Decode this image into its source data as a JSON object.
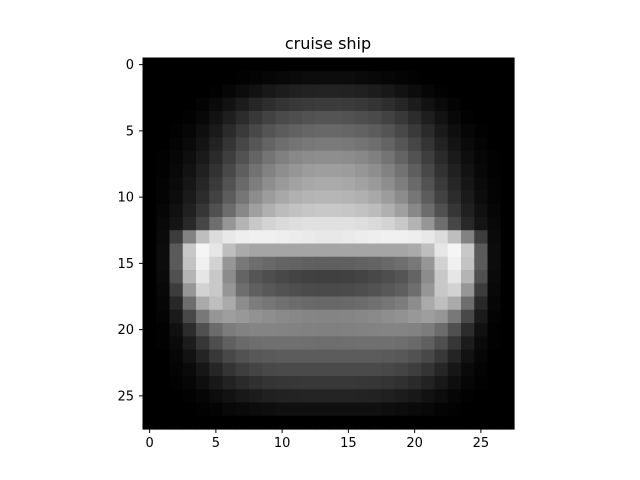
{
  "chart_data": {
    "type": "heatmap",
    "title": "cruise ship",
    "xlabel": "",
    "ylabel": "",
    "colormap": "gray",
    "rows": 28,
    "cols": 28,
    "xlim": [
      -0.5,
      27.5
    ],
    "ylim": [
      27.5,
      -0.5
    ],
    "x_ticks": [
      0,
      5,
      10,
      15,
      20,
      25
    ],
    "y_ticks": [
      0,
      5,
      10,
      15,
      20,
      25
    ],
    "grid": false,
    "value_range": [
      0,
      255
    ],
    "values": [
      [
        0,
        0,
        0,
        0,
        0,
        0,
        0,
        0,
        0,
        0,
        0,
        0,
        0,
        0,
        0,
        0,
        0,
        0,
        0,
        0,
        0,
        0,
        0,
        0,
        0,
        0,
        0,
        0
      ],
      [
        0,
        0,
        0,
        0,
        0,
        0,
        0,
        2,
        4,
        6,
        8,
        10,
        12,
        12,
        12,
        12,
        10,
        8,
        6,
        4,
        2,
        0,
        0,
        0,
        0,
        0,
        0,
        0
      ],
      [
        0,
        0,
        0,
        0,
        0,
        2,
        6,
        12,
        18,
        24,
        28,
        32,
        34,
        35,
        35,
        34,
        32,
        28,
        24,
        18,
        12,
        6,
        2,
        0,
        0,
        0,
        0,
        0
      ],
      [
        0,
        0,
        0,
        0,
        4,
        10,
        18,
        28,
        38,
        46,
        52,
        56,
        58,
        60,
        60,
        58,
        56,
        52,
        46,
        38,
        28,
        18,
        10,
        4,
        0,
        0,
        0,
        0
      ],
      [
        0,
        0,
        0,
        2,
        8,
        18,
        30,
        44,
        56,
        66,
        74,
        78,
        82,
        84,
        84,
        82,
        78,
        74,
        66,
        56,
        44,
        30,
        18,
        8,
        2,
        0,
        0,
        0
      ],
      [
        0,
        0,
        2,
        6,
        14,
        26,
        42,
        58,
        72,
        84,
        92,
        98,
        102,
        104,
        104,
        102,
        98,
        92,
        84,
        72,
        58,
        42,
        26,
        14,
        6,
        2,
        0,
        0
      ],
      [
        0,
        0,
        4,
        10,
        20,
        34,
        52,
        70,
        86,
        100,
        110,
        116,
        120,
        122,
        122,
        120,
        116,
        110,
        100,
        86,
        70,
        52,
        34,
        20,
        10,
        4,
        0,
        0
      ],
      [
        0,
        2,
        6,
        14,
        26,
        42,
        62,
        82,
        100,
        116,
        128,
        136,
        140,
        142,
        142,
        140,
        136,
        128,
        116,
        100,
        82,
        62,
        42,
        26,
        14,
        6,
        2,
        0
      ],
      [
        0,
        2,
        8,
        18,
        32,
        50,
        72,
        94,
        114,
        130,
        142,
        150,
        156,
        158,
        158,
        156,
        150,
        142,
        130,
        114,
        94,
        72,
        50,
        32,
        18,
        8,
        2,
        0
      ],
      [
        0,
        4,
        10,
        22,
        38,
        58,
        82,
        106,
        126,
        142,
        154,
        162,
        168,
        170,
        170,
        168,
        162,
        154,
        142,
        126,
        106,
        82,
        58,
        38,
        22,
        10,
        4,
        0
      ],
      [
        0,
        4,
        12,
        26,
        44,
        66,
        92,
        118,
        140,
        156,
        168,
        176,
        180,
        182,
        182,
        180,
        176,
        168,
        156,
        140,
        118,
        92,
        66,
        44,
        26,
        12,
        4,
        0
      ],
      [
        0,
        6,
        16,
        32,
        54,
        80,
        108,
        136,
        160,
        176,
        188,
        194,
        198,
        200,
        200,
        198,
        194,
        188,
        176,
        160,
        136,
        108,
        80,
        54,
        32,
        16,
        6,
        0
      ],
      [
        0,
        8,
        20,
        40,
        70,
        110,
        150,
        180,
        200,
        212,
        218,
        222,
        224,
        224,
        224,
        224,
        222,
        218,
        212,
        200,
        180,
        150,
        110,
        70,
        40,
        20,
        8,
        0
      ],
      [
        0,
        10,
        60,
        130,
        190,
        220,
        232,
        238,
        240,
        240,
        238,
        236,
        234,
        232,
        232,
        234,
        236,
        238,
        240,
        240,
        238,
        232,
        220,
        190,
        130,
        60,
        10,
        0
      ],
      [
        0,
        12,
        90,
        200,
        245,
        230,
        190,
        170,
        165,
        165,
        165,
        165,
        165,
        165,
        165,
        165,
        165,
        165,
        165,
        165,
        170,
        190,
        230,
        245,
        200,
        90,
        12,
        0
      ],
      [
        0,
        12,
        90,
        195,
        240,
        210,
        150,
        120,
        110,
        105,
        100,
        98,
        96,
        95,
        95,
        96,
        98,
        100,
        105,
        110,
        120,
        150,
        210,
        240,
        195,
        90,
        12,
        0
      ],
      [
        0,
        10,
        80,
        180,
        230,
        200,
        140,
        100,
        85,
        78,
        72,
        68,
        65,
        64,
        64,
        65,
        68,
        72,
        78,
        85,
        100,
        140,
        200,
        230,
        180,
        80,
        10,
        0
      ],
      [
        0,
        8,
        60,
        150,
        210,
        200,
        150,
        110,
        95,
        88,
        82,
        78,
        75,
        74,
        74,
        75,
        78,
        82,
        88,
        95,
        110,
        150,
        200,
        210,
        150,
        60,
        8,
        0
      ],
      [
        0,
        6,
        40,
        110,
        170,
        190,
        170,
        140,
        125,
        118,
        112,
        108,
        105,
        104,
        104,
        105,
        108,
        112,
        118,
        125,
        140,
        170,
        190,
        170,
        110,
        40,
        6,
        0
      ],
      [
        0,
        4,
        26,
        72,
        120,
        150,
        158,
        152,
        146,
        142,
        138,
        135,
        133,
        132,
        132,
        133,
        135,
        138,
        142,
        146,
        152,
        158,
        150,
        120,
        72,
        26,
        4,
        0
      ],
      [
        0,
        2,
        16,
        44,
        80,
        108,
        124,
        130,
        132,
        132,
        131,
        130,
        129,
        128,
        128,
        129,
        130,
        131,
        132,
        132,
        130,
        124,
        108,
        80,
        44,
        16,
        2,
        0
      ],
      [
        0,
        2,
        10,
        28,
        54,
        78,
        96,
        106,
        110,
        112,
        112,
        112,
        111,
        110,
        110,
        111,
        112,
        112,
        112,
        110,
        106,
        96,
        78,
        54,
        28,
        10,
        2,
        0
      ],
      [
        0,
        0,
        6,
        18,
        36,
        56,
        72,
        82,
        88,
        90,
        92,
        92,
        92,
        92,
        92,
        92,
        92,
        92,
        90,
        88,
        82,
        72,
        56,
        36,
        18,
        6,
        0,
        0
      ],
      [
        0,
        0,
        4,
        10,
        22,
        38,
        52,
        62,
        68,
        72,
        74,
        74,
        74,
        74,
        74,
        74,
        74,
        74,
        72,
        68,
        62,
        52,
        38,
        22,
        10,
        4,
        0,
        0
      ],
      [
        0,
        0,
        2,
        6,
        14,
        24,
        34,
        42,
        48,
        52,
        54,
        55,
        56,
        56,
        56,
        56,
        55,
        54,
        52,
        48,
        42,
        34,
        24,
        14,
        6,
        2,
        0,
        0
      ],
      [
        0,
        0,
        0,
        2,
        6,
        12,
        18,
        24,
        28,
        32,
        34,
        35,
        36,
        36,
        36,
        36,
        35,
        34,
        32,
        28,
        24,
        18,
        12,
        6,
        2,
        0,
        0,
        0
      ],
      [
        0,
        0,
        0,
        0,
        2,
        4,
        8,
        10,
        12,
        14,
        16,
        16,
        16,
        16,
        16,
        16,
        16,
        16,
        14,
        12,
        10,
        8,
        4,
        2,
        0,
        0,
        0,
        0
      ],
      [
        0,
        0,
        0,
        0,
        0,
        0,
        0,
        0,
        0,
        0,
        0,
        0,
        0,
        0,
        0,
        0,
        0,
        0,
        0,
        0,
        0,
        0,
        0,
        0,
        0,
        0,
        0,
        0
      ]
    ]
  }
}
